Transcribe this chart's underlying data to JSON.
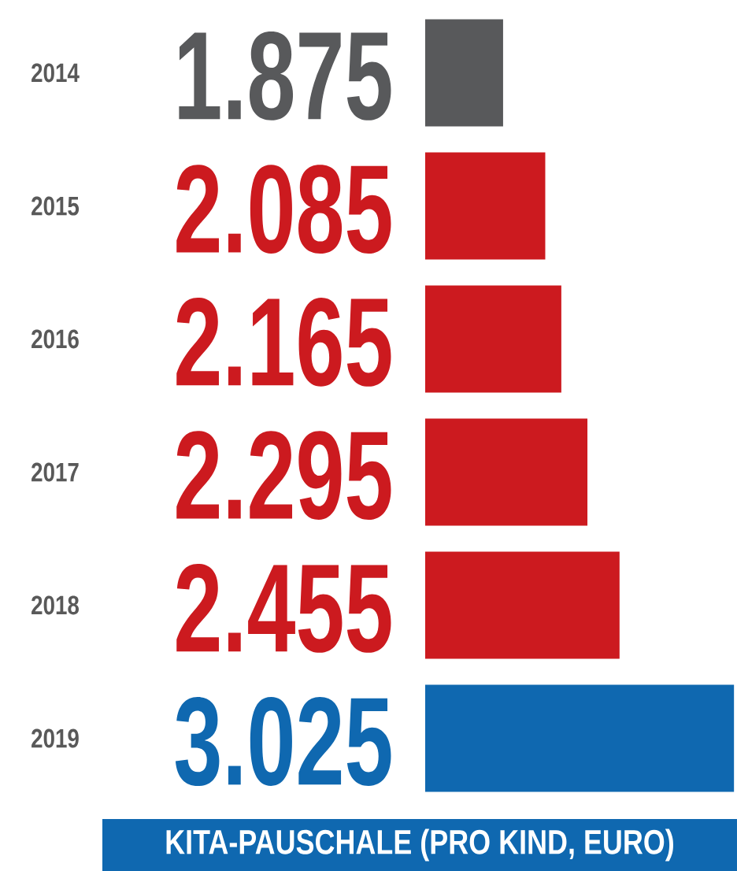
{
  "chart_data": {
    "type": "bar",
    "orientation": "horizontal",
    "categories": [
      "2014",
      "2015",
      "2016",
      "2017",
      "2018",
      "2019"
    ],
    "values": [
      1875,
      2085,
      2165,
      2295,
      2455,
      3025
    ],
    "colors": [
      "#58595b",
      "#cc1a1f",
      "#cc1a1f",
      "#cc1a1f",
      "#cc1a1f",
      "#0f68b0"
    ],
    "xlim": [
      1487,
      3040
    ],
    "tick_labels": "y",
    "value_labels": [
      "1.875",
      "2.085",
      "2.165",
      "2.295",
      "2.455",
      "3.025"
    ],
    "annotations": [
      "KITA-PAUSCHALE (PRO KIND, EURO)"
    ]
  }
}
